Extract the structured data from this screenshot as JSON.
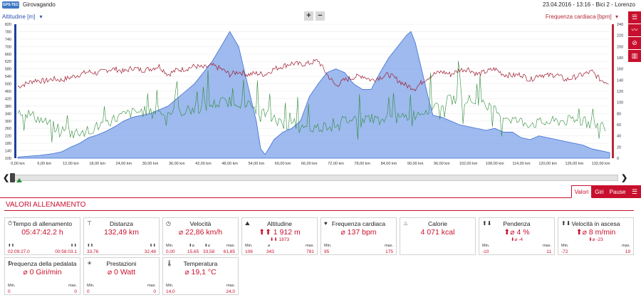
{
  "app": {
    "logo_text": "GPS-TEC",
    "title": "Girovagando"
  },
  "session": {
    "date": "23.04.2016",
    "time": "13:16",
    "bike": "Bici 2",
    "user": "Lorenzo",
    "sep": "-"
  },
  "chart_header": {
    "left_axis_title": "Altitudine [m]",
    "right_axis_title": "Frequenza cardiaca [bpm]",
    "zoom_in": "+",
    "zoom_out": "−",
    "dropdown": "▾"
  },
  "side_icons": [
    "list-icon",
    "trend-icon",
    "no-symbol-icon",
    "bar-chart-icon"
  ],
  "side_glyphs": [
    "☰",
    "〰",
    "⊘",
    "▥"
  ],
  "chart_data": {
    "type": "area",
    "x_unit": "km",
    "xlim": [
      0,
      134
    ],
    "ylim_left": [
      100,
      820
    ],
    "ylim_right": [
      0,
      240
    ],
    "x_ticks": [
      "0,00 km",
      "6,00 km",
      "12,00 km",
      "18,00 km",
      "24,00 km",
      "30,00 km",
      "36,00 km",
      "42,00 km",
      "48,00 km",
      "54,00 km",
      "60,00 km",
      "66,00 km",
      "72,00 km",
      "78,00 km",
      "84,00 km",
      "90,00 km",
      "96,00 km",
      "102,00 km",
      "108,00 km",
      "114,00 km",
      "120,00 km",
      "126,00 km",
      "132,00 km"
    ],
    "x_tick_values": [
      0,
      6,
      12,
      18,
      24,
      30,
      36,
      42,
      48,
      54,
      60,
      66,
      72,
      78,
      84,
      90,
      96,
      102,
      108,
      114,
      120,
      126,
      132
    ],
    "y_left_ticks": [
      820,
      780,
      740,
      700,
      660,
      620,
      580,
      540,
      500,
      460,
      420,
      380,
      340,
      300,
      260,
      220,
      180,
      140,
      100
    ],
    "y_right_ticks": [
      240,
      220,
      200,
      180,
      160,
      140,
      120,
      100,
      80,
      60,
      40,
      20,
      0
    ],
    "series": [
      {
        "name": "Altitudine [m]",
        "color": "#7ea3e8",
        "x": [
          0,
          2,
          5,
          8,
          10,
          12,
          14,
          16,
          18,
          20,
          22,
          24,
          26,
          28,
          30,
          32,
          34,
          36,
          38,
          40,
          42,
          44,
          46,
          47,
          48,
          49,
          50,
          51,
          52,
          53,
          54,
          55,
          56,
          58,
          60,
          62,
          64,
          66,
          68,
          70,
          72,
          74,
          76,
          78,
          80,
          82,
          84,
          86,
          88,
          89,
          90,
          91,
          92,
          93,
          94,
          96,
          98,
          100,
          102,
          104,
          106,
          108,
          110,
          112,
          114,
          116,
          118,
          120,
          122,
          124,
          126,
          128,
          130,
          132,
          134
        ],
        "y": [
          106,
          110,
          115,
          125,
          135,
          160,
          180,
          210,
          225,
          245,
          270,
          300,
          320,
          330,
          340,
          360,
          380,
          420,
          460,
          500,
          560,
          620,
          700,
          740,
          781,
          740,
          700,
          600,
          500,
          400,
          300,
          150,
          120,
          200,
          240,
          260,
          300,
          430,
          500,
          560,
          580,
          560,
          500,
          470,
          470,
          560,
          640,
          700,
          760,
          781,
          720,
          620,
          520,
          420,
          330,
          320,
          300,
          280,
          270,
          260,
          250,
          260,
          240,
          240,
          210,
          200,
          220,
          210,
          200,
          190,
          180,
          170,
          150,
          140,
          130
        ]
      },
      {
        "name": "Frequenza cardiaca [bpm]",
        "color": "#9e1a2f",
        "x": [
          0,
          2,
          4,
          6,
          8,
          10,
          12,
          14,
          16,
          18,
          20,
          22,
          24,
          26,
          28,
          30,
          32,
          34,
          36,
          38,
          40,
          42,
          44,
          46,
          48,
          50,
          52,
          54,
          56,
          58,
          60,
          62,
          64,
          66,
          68,
          70,
          72,
          74,
          76,
          78,
          80,
          82,
          84,
          86,
          88,
          90,
          92,
          94,
          96,
          98,
          100,
          102,
          104,
          106,
          108,
          110,
          112,
          114,
          116,
          118,
          120,
          122,
          124,
          126,
          128,
          130,
          132,
          134
        ],
        "y": [
          128,
          134,
          140,
          138,
          142,
          140,
          145,
          150,
          155,
          152,
          158,
          160,
          155,
          162,
          158,
          160,
          165,
          150,
          158,
          160,
          165,
          162,
          166,
          160,
          150,
          155,
          150,
          152,
          150,
          160,
          165,
          170,
          168,
          170,
          175,
          150,
          130,
          140,
          145,
          148,
          140,
          145,
          150,
          140,
          130,
          125,
          140,
          150,
          155,
          150,
          158,
          160,
          150,
          155,
          160,
          150,
          148,
          150,
          140,
          150,
          148,
          150,
          140,
          145,
          150,
          155,
          140,
          135
        ]
      },
      {
        "name": "Velocità",
        "color": "#2e8b3a"
      }
    ]
  },
  "tabs": {
    "valori": "Valori",
    "giri": "Giri",
    "pause": "Pause",
    "menu_glyph": "☰"
  },
  "section": {
    "title": "VALORI ALLENAMENTO"
  },
  "cards": [
    {
      "icon": "⏱",
      "icon_name": "clock-icon",
      "title": "Tempo di allenamento",
      "value": "05:47:42.2 h",
      "sub": "",
      "left_label": "⬆⬆",
      "left_value": "02:09:27.0",
      "right_label": "⬇⬇",
      "right_value": "00:58:03.1",
      "mid_label": "",
      "mid_value": "",
      "mid2_label": "",
      "mid2_value": ""
    },
    {
      "icon": "⊤",
      "icon_name": "distance-icon",
      "title": "Distanza",
      "value": "132,49 km",
      "sub": "",
      "left_label": "⬆⬆",
      "left_value": "33,76",
      "right_label": "⬇⬇",
      "right_value": "32,48",
      "mid_label": "",
      "mid_value": "",
      "mid2_label": "",
      "mid2_value": ""
    },
    {
      "icon": "◷",
      "icon_name": "speedometer-icon",
      "title": "Velocità",
      "value": "⌀ 22,86 km/h",
      "sub": "",
      "left_label": "Min.",
      "left_value": "0,00",
      "right_label": "max.",
      "right_value": "61,85",
      "mid_label": "⬆⌀",
      "mid_value": "15,65",
      "mid2_label": "⬇⌀",
      "mid2_value": "33,58"
    },
    {
      "icon": "⛰",
      "icon_name": "mountain-icon",
      "title": "Altitudine",
      "value": "⬆⬆ 1 912 m",
      "sub": "⬇⬇ 1873",
      "left_label": "Min.",
      "left_value": "106",
      "right_label": "max.",
      "right_value": "781",
      "mid_label": "⌀",
      "mid_value": "343",
      "mid2_label": "",
      "mid2_value": ""
    },
    {
      "icon": "♥",
      "icon_name": "heart-icon",
      "title": "Frequenza cardiaca",
      "value": "⌀ 137 bpm",
      "sub": "",
      "left_label": "Min.",
      "left_value": "95",
      "right_label": "max.",
      "right_value": "175",
      "mid_label": "",
      "mid_value": "",
      "mid2_label": "",
      "mid2_value": ""
    },
    {
      "icon": "♨",
      "icon_name": "flame-icon",
      "title": "Calorie",
      "value": "4 071 kcal",
      "sub": "",
      "left_label": "",
      "left_value": "",
      "right_label": "",
      "right_value": "",
      "mid_label": "",
      "mid_value": "",
      "mid2_label": "",
      "mid2_value": ""
    },
    {
      "icon": "⬆⬇",
      "icon_name": "slope-icon",
      "title": "Pendenza",
      "value": "⬆⌀ 4 %",
      "sub": "⬇⌀ -4",
      "left_label": "Min.",
      "left_value": "-10",
      "right_label": "max.",
      "right_value": "11",
      "mid_label": "",
      "mid_value": "",
      "mid2_label": "",
      "mid2_value": ""
    },
    {
      "icon": "⬆⬇",
      "icon_name": "climb-rate-icon",
      "title": "Velocità in ascesa",
      "value": "⬆⌀ 8 m/min",
      "sub": "⬇⌀ -23",
      "left_label": "Min.",
      "left_value": "-72",
      "right_label": "max.",
      "right_value": "19",
      "mid_label": "",
      "mid_value": "",
      "mid2_label": "",
      "mid2_value": ""
    },
    {
      "icon": "↻",
      "icon_name": "cadence-icon",
      "title": "Frequenza della pedalata",
      "value": "⌀ 0 Giri/min",
      "sub": "",
      "left_label": "Min.",
      "left_value": "0",
      "right_label": "max.",
      "right_value": "0",
      "mid_label": "",
      "mid_value": "",
      "mid2_label": "",
      "mid2_value": ""
    },
    {
      "icon": "☀",
      "icon_name": "power-icon",
      "title": "Prestazioni",
      "value": "⌀ 0 Watt",
      "sub": "",
      "left_label": "Min.",
      "left_value": "0",
      "right_label": "max.",
      "right_value": "0",
      "mid_label": "",
      "mid_value": "",
      "mid2_label": "",
      "mid2_value": ""
    },
    {
      "icon": "🌡",
      "icon_name": "thermometer-icon",
      "title": "Temperatura",
      "value": "⌀ 19,1 °C",
      "sub": "",
      "left_label": "Min.",
      "left_value": "14,0",
      "right_label": "max.",
      "right_value": "24,0",
      "mid_label": "",
      "mid_value": "",
      "mid2_label": "",
      "mid2_value": ""
    }
  ]
}
